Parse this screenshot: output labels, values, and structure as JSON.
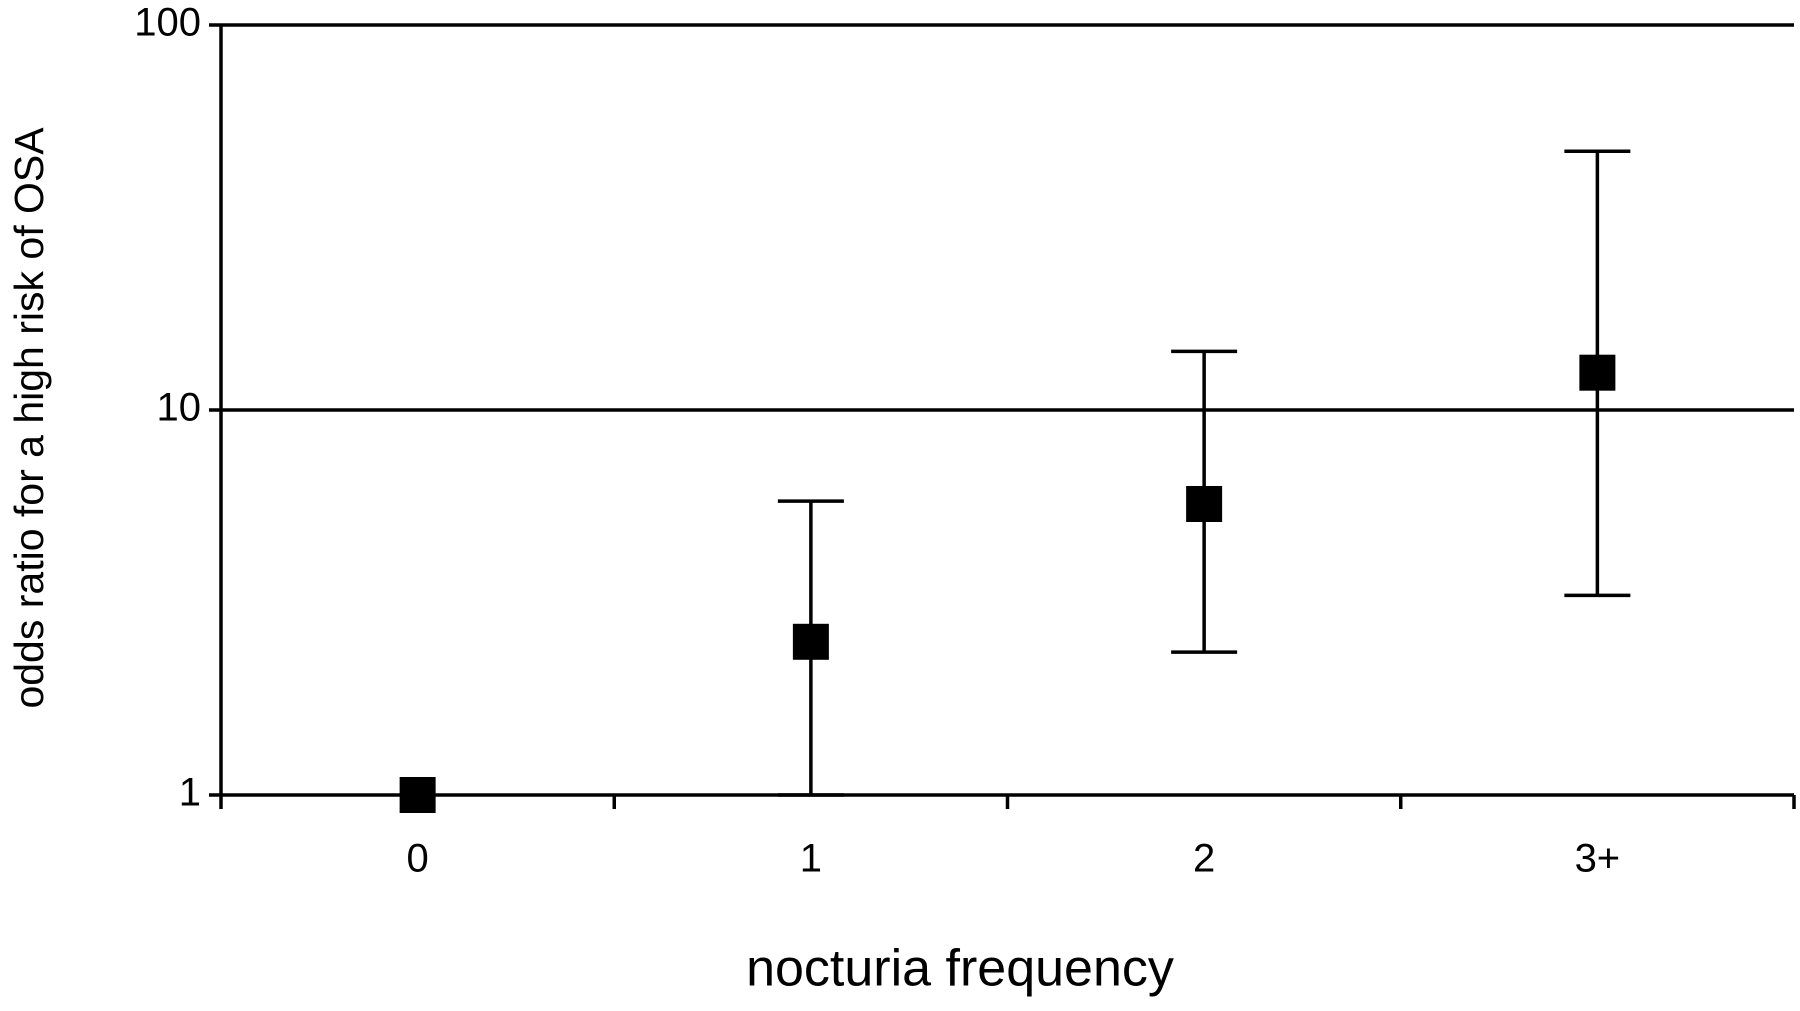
{
  "chart_data": {
    "type": "scatter",
    "x_label": "nocturia frequency",
    "y_label": "odds ratio for a high risk of OSA",
    "categories": [
      "0",
      "1",
      "2",
      "3+"
    ],
    "values": [
      1.0,
      2.5,
      5.7,
      12.5
    ],
    "lower": [
      null,
      1.0,
      2.35,
      3.3
    ],
    "upper": [
      null,
      5.8,
      14.2,
      47
    ],
    "color": "#000000",
    "log_scale": true,
    "ylim": [
      1,
      100
    ],
    "yticks": [
      1,
      10,
      100
    ],
    "grid": true
  }
}
